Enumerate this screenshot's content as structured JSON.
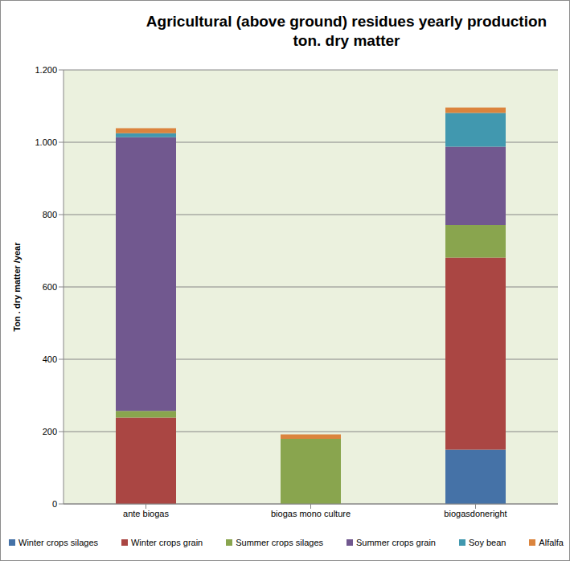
{
  "chart_data": {
    "type": "bar",
    "title": "Agricultural (above ground) residues yearly production",
    "subtitle": "ton. dry matter",
    "y_label": "Ton . dry matter /year",
    "categories": [
      "ante biogas",
      "biogas mono culture",
      "biogasdoneright"
    ],
    "series": [
      {
        "name": "Winter crops silages",
        "color": "#4572A7",
        "values": [
          0,
          0,
          150
        ]
      },
      {
        "name": "Winter crops grain",
        "color": "#AA4643",
        "values": [
          239,
          0,
          531
        ]
      },
      {
        "name": "Summer crops silages",
        "color": "#89A54E",
        "values": [
          18,
          180,
          90
        ]
      },
      {
        "name": "Summer crops grain",
        "color": "#71588F",
        "values": [
          757,
          0,
          217
        ]
      },
      {
        "name": "Soy bean",
        "color": "#4198AF",
        "values": [
          11,
          0,
          93
        ]
      },
      {
        "name": "Alfalfa",
        "color": "#DB843D",
        "values": [
          14,
          12,
          15
        ]
      }
    ],
    "ylim": [
      0,
      1200
    ],
    "yticks": [
      0,
      200,
      400,
      600,
      800,
      {
        "value": 1000,
        "label": "1.000"
      },
      {
        "value": 1200,
        "label": "1.200"
      }
    ],
    "stacked": true,
    "grid": true,
    "legend": "bottom"
  }
}
